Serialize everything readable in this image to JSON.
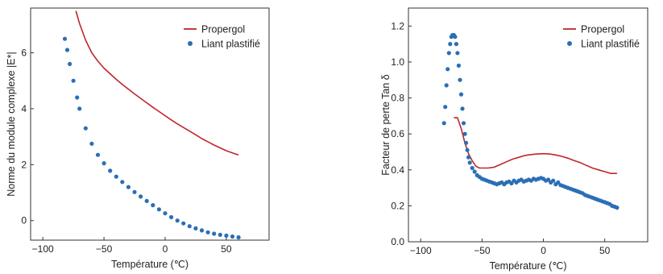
{
  "colors": {
    "propergol": "#c0262d",
    "liant": "#2a6fb5"
  },
  "chart_data": [
    {
      "type": "line",
      "title": "",
      "xlabel": "Température (℃)",
      "ylabel": "Norme du module complexe |E*|",
      "xlim": [
        -110,
        85
      ],
      "ylim": [
        -0.7,
        7.6
      ],
      "xticks": [
        -100,
        -50,
        0,
        50
      ],
      "xtick_labels": [
        "−100",
        "−50",
        "0",
        "50"
      ],
      "yticks": [
        0,
        2,
        4,
        6
      ],
      "ytick_labels": [
        "0",
        "2",
        "4",
        "6"
      ],
      "legend_position": "top-right",
      "grid": false,
      "series": [
        {
          "name": "Propergol",
          "style": "line",
          "color": "#c0262d",
          "x": [
            -73,
            -70,
            -65,
            -60,
            -55,
            -50,
            -45,
            -40,
            -35,
            -30,
            -25,
            -20,
            -15,
            -10,
            -5,
            0,
            5,
            10,
            15,
            20,
            25,
            30,
            35,
            40,
            45,
            50,
            55,
            60
          ],
          "y": [
            7.5,
            7.05,
            6.45,
            6.0,
            5.7,
            5.45,
            5.25,
            5.05,
            4.87,
            4.7,
            4.53,
            4.37,
            4.21,
            4.05,
            3.9,
            3.75,
            3.6,
            3.46,
            3.33,
            3.2,
            3.07,
            2.93,
            2.82,
            2.7,
            2.6,
            2.5,
            2.42,
            2.35
          ]
        },
        {
          "name": "Liant plastifié",
          "style": "scatter",
          "color": "#2a6fb5",
          "x": [
            -82,
            -80,
            -78,
            -75,
            -72,
            -70,
            -65,
            -60,
            -55,
            -50,
            -45,
            -40,
            -35,
            -30,
            -25,
            -20,
            -15,
            -10,
            -5,
            0,
            5,
            10,
            15,
            20,
            25,
            30,
            35,
            40,
            45,
            50,
            55,
            60
          ],
          "y": [
            6.5,
            6.1,
            5.6,
            5.0,
            4.4,
            4.0,
            3.3,
            2.75,
            2.35,
            2.05,
            1.78,
            1.57,
            1.38,
            1.2,
            1.02,
            0.86,
            0.7,
            0.55,
            0.4,
            0.26,
            0.12,
            0.0,
            -0.1,
            -0.2,
            -0.28,
            -0.35,
            -0.42,
            -0.47,
            -0.51,
            -0.54,
            -0.57,
            -0.6
          ]
        }
      ]
    },
    {
      "type": "line",
      "title": "",
      "xlabel": "Température (℃)",
      "ylabel": "Facteur de perte Tan δ",
      "xlim": [
        -110,
        85
      ],
      "ylim": [
        0.0,
        1.3
      ],
      "xticks": [
        -100,
        -50,
        0,
        50
      ],
      "xtick_labels": [
        "−100",
        "−50",
        "0",
        "50"
      ],
      "yticks": [
        0.0,
        0.2,
        0.4,
        0.6,
        0.8,
        1.0,
        1.2
      ],
      "ytick_labels": [
        "0.0",
        "0.2",
        "0.4",
        "0.6",
        "0.8",
        "1.0",
        "1.2"
      ],
      "legend_position": "top-right",
      "grid": false,
      "series": [
        {
          "name": "Propergol",
          "style": "line",
          "color": "#c0262d",
          "x": [
            -73,
            -70,
            -67,
            -64,
            -61,
            -58,
            -55,
            -52,
            -50,
            -45,
            -40,
            -35,
            -30,
            -25,
            -20,
            -15,
            -10,
            -5,
            0,
            5,
            10,
            15,
            20,
            25,
            30,
            35,
            40,
            45,
            50,
            55,
            60
          ],
          "y": [
            0.69,
            0.69,
            0.63,
            0.55,
            0.49,
            0.45,
            0.42,
            0.41,
            0.41,
            0.41,
            0.415,
            0.43,
            0.445,
            0.46,
            0.47,
            0.48,
            0.485,
            0.488,
            0.49,
            0.488,
            0.483,
            0.475,
            0.465,
            0.452,
            0.44,
            0.425,
            0.41,
            0.4,
            0.39,
            0.38,
            0.38
          ]
        },
        {
          "name": "Liant plastifié",
          "style": "scatter",
          "color": "#2a6fb5",
          "x": [
            -81,
            -80,
            -79,
            -78,
            -77,
            -76,
            -75,
            -74,
            -73,
            -72,
            -71,
            -70,
            -69,
            -68,
            -67,
            -66,
            -65,
            -64,
            -63,
            -62,
            -61,
            -60,
            -58,
            -56,
            -54,
            -52,
            -50,
            -48,
            -46,
            -44,
            -42,
            -40,
            -38,
            -36,
            -34,
            -32,
            -30,
            -28,
            -26,
            -24,
            -22,
            -20,
            -18,
            -16,
            -14,
            -12,
            -10,
            -8,
            -6,
            -4,
            -2,
            0,
            2,
            4,
            6,
            8,
            10,
            12,
            14,
            16,
            18,
            20,
            22,
            24,
            26,
            28,
            30,
            32,
            34,
            36,
            38,
            40,
            42,
            44,
            46,
            48,
            50,
            52,
            54,
            56,
            58,
            60
          ],
          "y": [
            0.66,
            0.75,
            0.87,
            0.96,
            1.05,
            1.1,
            1.14,
            1.15,
            1.15,
            1.14,
            1.1,
            1.05,
            0.98,
            0.9,
            0.82,
            0.74,
            0.66,
            0.6,
            0.55,
            0.51,
            0.47,
            0.44,
            0.41,
            0.39,
            0.37,
            0.36,
            0.35,
            0.345,
            0.34,
            0.335,
            0.33,
            0.325,
            0.32,
            0.325,
            0.33,
            0.32,
            0.33,
            0.335,
            0.325,
            0.34,
            0.33,
            0.34,
            0.345,
            0.335,
            0.34,
            0.345,
            0.34,
            0.35,
            0.345,
            0.35,
            0.355,
            0.35,
            0.34,
            0.345,
            0.33,
            0.34,
            0.32,
            0.33,
            0.315,
            0.31,
            0.305,
            0.3,
            0.295,
            0.29,
            0.285,
            0.28,
            0.275,
            0.27,
            0.26,
            0.255,
            0.25,
            0.245,
            0.24,
            0.235,
            0.23,
            0.225,
            0.22,
            0.215,
            0.21,
            0.2,
            0.195,
            0.19
          ]
        }
      ]
    }
  ]
}
